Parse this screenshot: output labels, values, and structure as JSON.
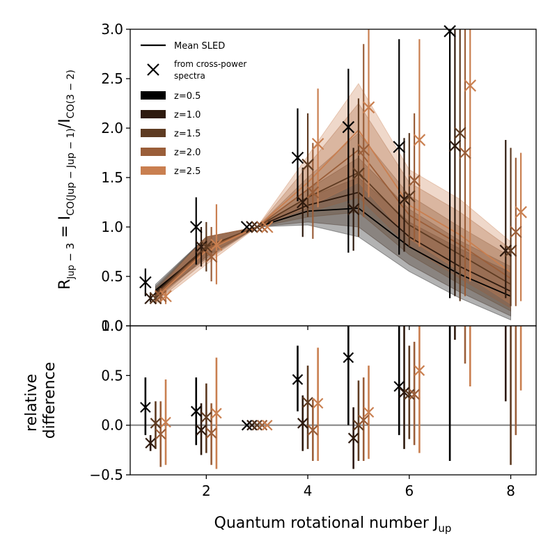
{
  "chart_data": [
    {
      "panel": "top",
      "type": "line",
      "ylabel_main": "R",
      "ylabel_sub": "Jup",
      "ylabel_sub_tail": " − 3",
      "ylabel_eq": " = I",
      "ylabel_i1_sub": "CO(Jup − Jup − 1)",
      "ylabel_slash": "/I",
      "ylabel_i2_sub": "CO(3 − 2)",
      "ylim": [
        0,
        3
      ],
      "xlim": [
        0.5,
        8.5
      ],
      "yticks": [
        "0.0",
        "0.5",
        "1.0",
        "1.5",
        "2.0",
        "2.5",
        "3.0"
      ],
      "ytick_values": [
        0,
        0.5,
        1,
        1.5,
        2,
        2.5,
        3
      ],
      "legend_position": "top-left",
      "legend": {
        "mean": "Mean SLED",
        "cross_line1": "from cross-power",
        "cross_line2": " spectra",
        "z_entries": [
          "z=0.5",
          "z=1.0",
          "z=1.5",
          "z=2.0",
          "z=2.5"
        ]
      },
      "x": [
        1,
        2,
        3,
        4,
        5,
        6,
        7,
        8
      ],
      "series": [
        {
          "name": "z=0.5",
          "color": "#000000",
          "x_offset": -0.2,
          "mean": [
            0.36,
            0.78,
            1.0,
            1.16,
            1.19,
            0.8,
            0.52,
            0.3
          ],
          "band_lo": [
            0.3,
            0.68,
            1.0,
            1.02,
            0.9,
            0.55,
            0.28,
            0.06
          ],
          "band_hi": [
            0.42,
            0.9,
            1.0,
            1.3,
            1.5,
            1.05,
            0.78,
            0.54
          ],
          "points": [
            0.44,
            1.0,
            1.0,
            1.7,
            2.01,
            1.81,
            2.98,
            null
          ],
          "err_lo": [
            0.3,
            0.62,
            1.0,
            1.26,
            0.74,
            0.72,
            0.28,
            null
          ],
          "err_hi": [
            0.58,
            1.3,
            1.0,
            2.2,
            2.6,
            2.9,
            3.0,
            null
          ]
        },
        {
          "name": "z=1.0",
          "color": "#2e1a0e",
          "x_offset": -0.1,
          "mean": [
            0.34,
            0.8,
            1.0,
            1.22,
            1.35,
            0.9,
            0.6,
            0.35
          ],
          "band_lo": [
            0.28,
            0.7,
            1.0,
            1.05,
            1.0,
            0.62,
            0.34,
            0.1
          ],
          "band_hi": [
            0.4,
            0.9,
            1.0,
            1.38,
            1.7,
            1.18,
            0.86,
            0.6
          ],
          "points": [
            0.28,
            0.8,
            1.0,
            1.25,
            1.18,
            1.28,
            1.82,
            0.76
          ],
          "err_lo": [
            0.24,
            0.6,
            1.0,
            0.9,
            0.76,
            0.75,
            0.3,
            0.28
          ],
          "err_hi": [
            0.34,
            1.0,
            1.0,
            1.6,
            1.8,
            1.9,
            3.0,
            1.88
          ]
        },
        {
          "name": "z=1.5",
          "color": "#5e3b22",
          "x_offset": 0.0,
          "mean": [
            0.32,
            0.8,
            1.0,
            1.3,
            1.55,
            1.02,
            0.72,
            0.42
          ],
          "band_lo": [
            0.26,
            0.7,
            1.0,
            1.1,
            1.15,
            0.72,
            0.42,
            0.15
          ],
          "band_hi": [
            0.38,
            0.9,
            1.0,
            1.5,
            1.95,
            1.32,
            1.0,
            0.7
          ],
          "points": [
            0.28,
            0.8,
            1.0,
            1.63,
            1.54,
            1.31,
            1.95,
            0.76
          ],
          "err_lo": [
            0.22,
            0.55,
            1.0,
            1.1,
            0.9,
            0.8,
            0.25,
            0.2
          ],
          "err_hi": [
            0.34,
            1.05,
            1.0,
            2.15,
            2.3,
            1.95,
            3.0,
            1.8
          ]
        },
        {
          "name": "z=2.0",
          "color": "#9a5e39",
          "x_offset": 0.1,
          "mean": [
            0.3,
            0.78,
            1.0,
            1.38,
            1.78,
            1.12,
            0.82,
            0.48
          ],
          "band_lo": [
            0.24,
            0.66,
            1.0,
            1.15,
            1.3,
            0.8,
            0.48,
            0.18
          ],
          "band_hi": [
            0.36,
            0.9,
            1.0,
            1.62,
            2.25,
            1.45,
            1.15,
            0.78
          ],
          "points": [
            0.3,
            0.7,
            1.0,
            1.35,
            1.78,
            1.47,
            1.75,
            0.95
          ],
          "err_lo": [
            0.22,
            0.45,
            1.0,
            0.88,
            1.1,
            0.85,
            0.3,
            0.2
          ],
          "err_hi": [
            0.38,
            1.0,
            1.0,
            1.85,
            2.85,
            2.15,
            3.0,
            1.7
          ]
        },
        {
          "name": "z=2.5",
          "color": "#c97f50",
          "x_offset": 0.2,
          "mean": [
            0.28,
            0.76,
            1.0,
            1.45,
            1.98,
            1.22,
            0.92,
            0.54
          ],
          "band_lo": [
            0.22,
            0.62,
            1.0,
            1.2,
            1.45,
            0.88,
            0.55,
            0.22
          ],
          "band_hi": [
            0.34,
            0.9,
            1.0,
            1.72,
            2.45,
            1.58,
            1.28,
            0.85
          ],
          "points": [
            0.3,
            0.82,
            1.0,
            1.84,
            2.21,
            1.88,
            2.43,
            1.15
          ],
          "err_lo": [
            0.22,
            0.42,
            1.0,
            1.2,
            1.3,
            0.8,
            0.45,
            0.25
          ],
          "err_hi": [
            0.38,
            1.23,
            1.0,
            2.4,
            3.0,
            2.9,
            3.0,
            1.75
          ]
        }
      ]
    },
    {
      "panel": "bottom",
      "type": "scatter",
      "ylabel_line1": "relative",
      "ylabel_line2": "difference",
      "xlabel": "Quantum rotational number J",
      "xlabel_sub": "up",
      "ylim": [
        -0.5,
        1.0
      ],
      "xlim": [
        0.5,
        8.5
      ],
      "yticks": [
        "−0.5",
        "0.0",
        "0.5",
        "1.0"
      ],
      "ytick_values": [
        -0.5,
        0,
        0.5,
        1
      ],
      "xticks": [
        "2",
        "4",
        "6",
        "8"
      ],
      "xtick_values": [
        2,
        4,
        6,
        8
      ],
      "reference_line": 0,
      "series": [
        {
          "name": "z=0.5",
          "color": "#000000",
          "x_offset": -0.2,
          "points": [
            0.18,
            0.14,
            0.0,
            0.46,
            0.68,
            0.39,
            null,
            null
          ],
          "err_lo": [
            -0.1,
            -0.2,
            0.0,
            0.14,
            0.0,
            -0.1,
            -0.36,
            null
          ],
          "err_hi": [
            0.48,
            0.48,
            0.0,
            0.8,
            1.0,
            1.0,
            1.0,
            null
          ]
        },
        {
          "name": "z=1.0",
          "color": "#2e1a0e",
          "x_offset": -0.1,
          "points": [
            -0.18,
            -0.05,
            0.0,
            0.02,
            -0.13,
            0.33,
            null,
            null
          ],
          "err_lo": [
            -0.26,
            -0.3,
            0.0,
            -0.26,
            -0.44,
            -0.24,
            0.86,
            0.24
          ],
          "err_hi": [
            -0.1,
            0.22,
            0.0,
            0.3,
            0.18,
            1.0,
            1.0,
            1.0
          ]
        },
        {
          "name": "z=1.5",
          "color": "#5e3b22",
          "x_offset": 0.0,
          "points": [
            0.02,
            0.08,
            0.0,
            0.23,
            0.0,
            0.31,
            null,
            null
          ],
          "err_lo": [
            -0.24,
            -0.28,
            0.0,
            -0.24,
            -0.36,
            -0.14,
            null,
            -0.4
          ],
          "err_hi": [
            0.24,
            0.42,
            0.0,
            0.6,
            0.45,
            0.8,
            null,
            1.0
          ]
        },
        {
          "name": "z=2.0",
          "color": "#9a5e39",
          "x_offset": 0.1,
          "points": [
            -0.09,
            -0.08,
            0.0,
            -0.05,
            0.05,
            0.31,
            null,
            null
          ],
          "err_lo": [
            -0.42,
            -0.4,
            0.0,
            -0.36,
            -0.36,
            -0.2,
            0.62,
            -0.1
          ],
          "err_hi": [
            0.24,
            0.22,
            0.0,
            0.26,
            0.48,
            0.84,
            1.0,
            1.0
          ]
        },
        {
          "name": "z=2.5",
          "color": "#c97f50",
          "x_offset": 0.2,
          "points": [
            0.03,
            0.12,
            0.0,
            0.22,
            0.13,
            0.55,
            null,
            null
          ],
          "err_lo": [
            -0.4,
            -0.44,
            0.0,
            -0.36,
            -0.34,
            -0.28,
            0.39,
            0.35
          ],
          "err_hi": [
            0.46,
            0.68,
            0.0,
            0.78,
            0.6,
            1.0,
            1.0,
            1.0
          ]
        }
      ]
    }
  ]
}
